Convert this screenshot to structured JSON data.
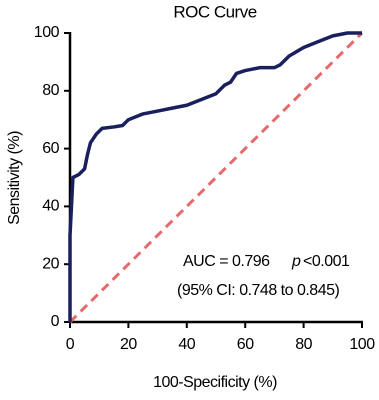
{
  "chart_data": {
    "type": "line",
    "title": "ROC Curve",
    "x_label": "100-Specificity (%)",
    "y_label": "Sensitivity (%)",
    "xlim": [
      0,
      100
    ],
    "ylim": [
      0,
      100
    ],
    "xticks": [
      0,
      20,
      40,
      60,
      80,
      100
    ],
    "yticks": [
      0,
      20,
      40,
      60,
      80,
      100
    ],
    "grid": false,
    "series": [
      {
        "color": "#1a1f5e",
        "x": [
          0,
          0,
          0.5,
          1,
          3,
          5,
          6,
          7,
          9,
          11,
          15,
          18,
          20,
          25,
          30,
          35,
          40,
          45,
          50,
          53,
          55,
          57,
          60,
          65,
          70,
          72,
          75,
          80,
          85,
          90,
          95,
          100
        ],
        "values": [
          0,
          30,
          40,
          50,
          51,
          53,
          58,
          62,
          65,
          67,
          67.5,
          68,
          70,
          72,
          73,
          74,
          75,
          77,
          79,
          82,
          83,
          86,
          87,
          88,
          88,
          89,
          92,
          95,
          97,
          99,
          100,
          100
        ]
      }
    ],
    "reference_line": {
      "x": [
        0,
        100
      ],
      "values": [
        0,
        100
      ],
      "color": "#e8696b",
      "dashed": true
    },
    "annotations": [
      "AUC = 0.796",
      "p",
      "<0.001",
      "(95% CI: 0.748 to 0.845)"
    ]
  }
}
